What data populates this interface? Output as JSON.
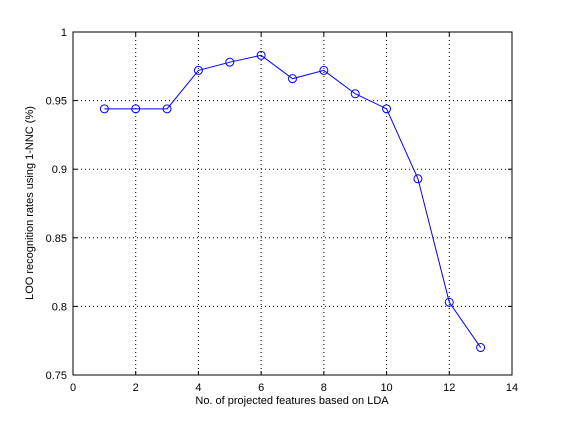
{
  "chart_data": {
    "type": "line",
    "title": "",
    "xlabel": "No. of projected features based on LDA",
    "ylabel": "LOO recognition rates using 1-NNC (%)",
    "xlim": [
      0,
      14
    ],
    "ylim": [
      0.75,
      1
    ],
    "xticks": [
      0,
      2,
      4,
      6,
      8,
      10,
      12,
      14
    ],
    "xtick_labels": [
      "0",
      "2",
      "4",
      "6",
      "8",
      "10",
      "12",
      "14"
    ],
    "yticks": [
      0.75,
      0.8,
      0.85,
      0.9,
      0.95,
      1
    ],
    "ytick_labels": [
      "0.75",
      "0.8",
      "0.85",
      "0.9",
      "0.95",
      "1"
    ],
    "grid": true,
    "grid_style": "dotted",
    "marker": "circle",
    "line_color": "#0000ff",
    "series": [
      {
        "x": [
          1,
          2,
          3,
          4,
          5,
          6,
          7,
          8,
          9,
          10,
          11,
          12,
          13
        ],
        "y": [
          0.944,
          0.944,
          0.944,
          0.972,
          0.978,
          0.983,
          0.966,
          0.972,
          0.955,
          0.944,
          0.893,
          0.803,
          0.77
        ]
      }
    ]
  }
}
